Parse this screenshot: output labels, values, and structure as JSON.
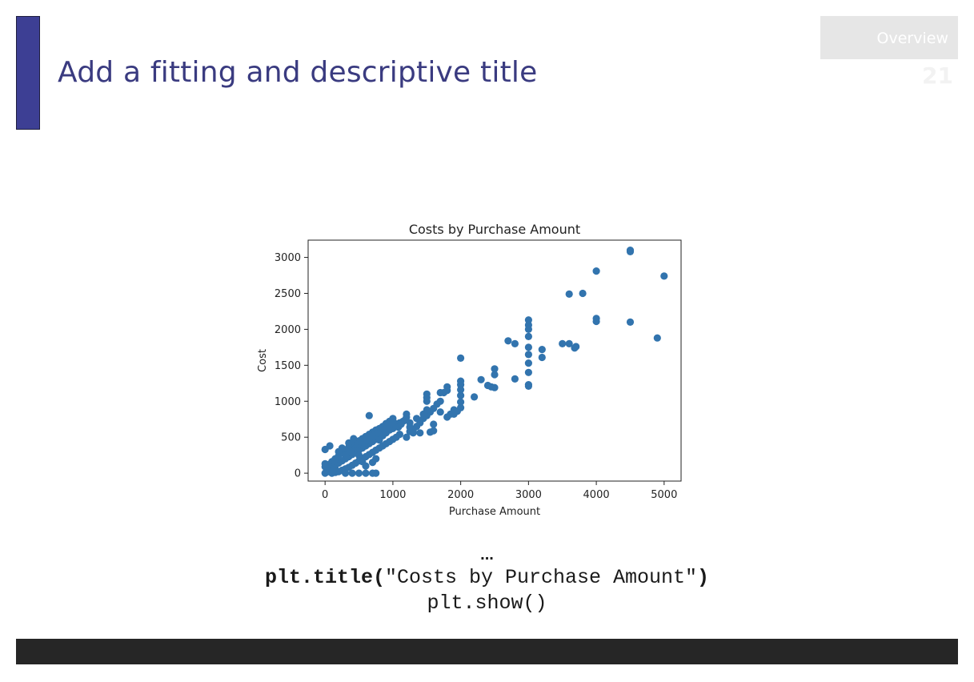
{
  "slide": {
    "title": "Add a fitting and descriptive title",
    "section": "Overview",
    "page_number": "21",
    "accent_color": "#3d3f94",
    "footer_color": "#262626"
  },
  "code": {
    "ellipsis": "...",
    "line1_func": "plt.title(",
    "line1_arg": "\"Costs by Purchase Amount\"",
    "line1_close": ")",
    "line2": "plt.show()"
  },
  "chart_data": {
    "type": "scatter",
    "title": "Costs by Purchase Amount",
    "xlabel": "Purchase Amount",
    "ylabel": "Cost",
    "xlim": [
      -250,
      5250
    ],
    "ylim": [
      -110,
      3240
    ],
    "xticks": [
      0,
      1000,
      2000,
      3000,
      4000,
      5000
    ],
    "yticks": [
      0,
      500,
      1000,
      1500,
      2000,
      2500,
      3000
    ],
    "grid": false,
    "marker_color": "#3274ae",
    "points": [
      [
        4500,
        3100
      ],
      [
        4500,
        3080
      ],
      [
        5000,
        2740
      ],
      [
        4000,
        2810
      ],
      [
        3800,
        2500
      ],
      [
        3600,
        2490
      ],
      [
        4000,
        2150
      ],
      [
        4000,
        2110
      ],
      [
        4500,
        2100
      ],
      [
        4900,
        1880
      ],
      [
        3000,
        2130
      ],
      [
        3000,
        2060
      ],
      [
        3000,
        2000
      ],
      [
        3000,
        1900
      ],
      [
        3000,
        1750
      ],
      [
        3000,
        1650
      ],
      [
        3000,
        1530
      ],
      [
        3000,
        1400
      ],
      [
        3000,
        1230
      ],
      [
        3000,
        1210
      ],
      [
        2700,
        1840
      ],
      [
        2800,
        1800
      ],
      [
        3500,
        1800
      ],
      [
        3600,
        1800
      ],
      [
        3700,
        1760
      ],
      [
        3680,
        1740
      ],
      [
        3200,
        1720
      ],
      [
        3200,
        1610
      ],
      [
        2000,
        1600
      ],
      [
        2500,
        1450
      ],
      [
        2500,
        1370
      ],
      [
        2800,
        1310
      ],
      [
        2300,
        1300
      ],
      [
        2400,
        1220
      ],
      [
        2450,
        1200
      ],
      [
        2500,
        1190
      ],
      [
        2000,
        1280
      ],
      [
        2000,
        1230
      ],
      [
        2000,
        1160
      ],
      [
        2000,
        1080
      ],
      [
        2000,
        990
      ],
      [
        2000,
        910
      ],
      [
        1800,
        1200
      ],
      [
        1800,
        1150
      ],
      [
        1750,
        1120
      ],
      [
        1700,
        1120
      ],
      [
        1500,
        1100
      ],
      [
        1500,
        1050
      ],
      [
        1500,
        1000
      ],
      [
        2200,
        1060
      ],
      [
        1900,
        880
      ],
      [
        1850,
        820
      ],
      [
        1800,
        780
      ],
      [
        1700,
        1000
      ],
      [
        1650,
        960
      ],
      [
        1600,
        900
      ],
      [
        1550,
        850
      ],
      [
        1500,
        800
      ],
      [
        1450,
        760
      ],
      [
        1400,
        700
      ],
      [
        1350,
        650
      ],
      [
        1300,
        600
      ],
      [
        1250,
        580
      ],
      [
        1600,
        680
      ],
      [
        1600,
        590
      ],
      [
        1550,
        570
      ],
      [
        1200,
        820
      ],
      [
        1200,
        780
      ],
      [
        1150,
        720
      ],
      [
        1100,
        700
      ],
      [
        1050,
        660
      ],
      [
        1000,
        620
      ],
      [
        950,
        600
      ],
      [
        900,
        560
      ],
      [
        850,
        520
      ],
      [
        800,
        500
      ],
      [
        750,
        470
      ],
      [
        700,
        440
      ],
      [
        650,
        410
      ],
      [
        600,
        380
      ],
      [
        550,
        350
      ],
      [
        500,
        320
      ],
      [
        450,
        290
      ],
      [
        400,
        260
      ],
      [
        350,
        230
      ],
      [
        300,
        200
      ],
      [
        250,
        170
      ],
      [
        200,
        140
      ],
      [
        150,
        110
      ],
      [
        100,
        80
      ],
      [
        50,
        50
      ],
      [
        20,
        20
      ],
      [
        0,
        0
      ],
      [
        10,
        10
      ],
      [
        30,
        40
      ],
      [
        60,
        20
      ],
      [
        1000,
        760
      ],
      [
        950,
        720
      ],
      [
        900,
        690
      ],
      [
        850,
        650
      ],
      [
        800,
        620
      ],
      [
        750,
        600
      ],
      [
        700,
        570
      ],
      [
        650,
        540
      ],
      [
        600,
        510
      ],
      [
        550,
        480
      ],
      [
        500,
        450
      ],
      [
        450,
        420
      ],
      [
        400,
        390
      ],
      [
        350,
        360
      ],
      [
        300,
        320
      ],
      [
        250,
        280
      ],
      [
        200,
        240
      ],
      [
        150,
        200
      ],
      [
        100,
        160
      ],
      [
        50,
        120
      ],
      [
        0,
        90
      ],
      [
        0,
        130
      ],
      [
        0,
        330
      ],
      [
        70,
        380
      ],
      [
        1100,
        540
      ],
      [
        1050,
        500
      ],
      [
        1000,
        470
      ],
      [
        950,
        440
      ],
      [
        900,
        410
      ],
      [
        850,
        380
      ],
      [
        800,
        350
      ],
      [
        750,
        320
      ],
      [
        700,
        290
      ],
      [
        650,
        260
      ],
      [
        600,
        230
      ],
      [
        550,
        200
      ],
      [
        500,
        170
      ],
      [
        450,
        140
      ],
      [
        400,
        110
      ],
      [
        350,
        80
      ],
      [
        300,
        60
      ],
      [
        250,
        40
      ],
      [
        200,
        20
      ],
      [
        150,
        10
      ],
      [
        100,
        0
      ],
      [
        650,
        800
      ],
      [
        800,
        460
      ],
      [
        1200,
        500
      ],
      [
        1300,
        560
      ],
      [
        1400,
        560
      ],
      [
        1250,
        700
      ],
      [
        1350,
        760
      ],
      [
        1450,
        820
      ],
      [
        1500,
        880
      ],
      [
        700,
        0
      ],
      [
        750,
        0
      ],
      [
        400,
        0
      ],
      [
        500,
        0
      ],
      [
        600,
        0
      ],
      [
        300,
        0
      ],
      [
        700,
        150
      ],
      [
        600,
        100
      ],
      [
        550,
        160
      ],
      [
        750,
        200
      ],
      [
        500,
        250
      ],
      [
        450,
        350
      ],
      [
        350,
        420
      ],
      [
        300,
        260
      ],
      [
        250,
        350
      ],
      [
        200,
        300
      ],
      [
        150,
        60
      ],
      [
        120,
        40
      ],
      [
        420,
        480
      ],
      [
        380,
        300
      ],
      [
        480,
        400
      ],
      [
        520,
        440
      ],
      [
        580,
        420
      ],
      [
        620,
        460
      ],
      [
        680,
        500
      ],
      [
        720,
        520
      ],
      [
        780,
        560
      ],
      [
        820,
        580
      ],
      [
        880,
        600
      ],
      [
        920,
        640
      ],
      [
        980,
        680
      ],
      [
        1020,
        700
      ],
      [
        1080,
        640
      ],
      [
        1120,
        680
      ],
      [
        1180,
        740
      ],
      [
        1250,
        640
      ],
      [
        1700,
        850
      ],
      [
        1900,
        820
      ],
      [
        1950,
        860
      ]
    ]
  }
}
